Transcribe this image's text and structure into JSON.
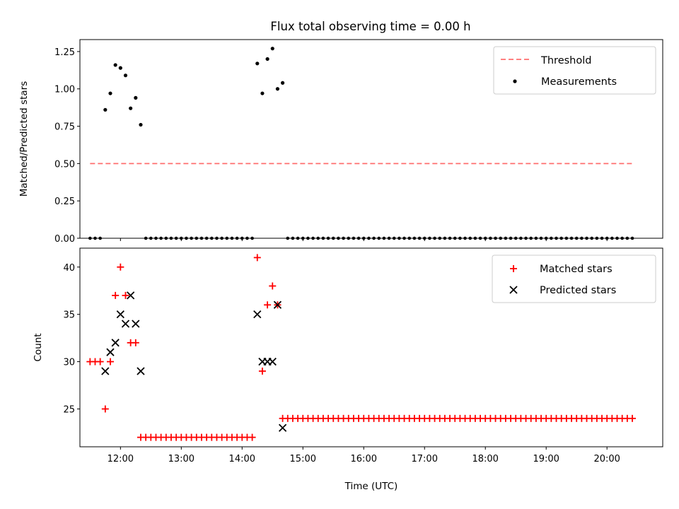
{
  "figure_title": "Flux total observing time = 0.00 h",
  "colors": {
    "threshold": "#ff6f6f",
    "measurements": "#000000",
    "matched": "#ff0000",
    "predicted": "#000000"
  },
  "chart_data": [
    {
      "type": "scatter",
      "title": "Flux total observing time = 0.00 h",
      "xlabel": "",
      "ylabel": "Matched/Predicted stars",
      "xlim": [
        "11:20",
        "20:55"
      ],
      "ylim": [
        0,
        1.33
      ],
      "yticks": [
        "0.00",
        "0.25",
        "0.50",
        "0.75",
        "1.00",
        "1.25"
      ],
      "legend_position": "top-right",
      "legend": [
        "Threshold",
        "Measurements"
      ],
      "threshold": {
        "y": 0.5,
        "x_start": "11:30",
        "x_end": "20:25"
      },
      "measurements": {
        "nonzero": [
          [
            "11:45",
            0.86
          ],
          [
            "11:50",
            0.97
          ],
          [
            "11:55",
            1.16
          ],
          [
            "12:00",
            1.14
          ],
          [
            "12:05",
            1.09
          ],
          [
            "12:10",
            0.87
          ],
          [
            "12:15",
            0.94
          ],
          [
            "12:20",
            0.76
          ],
          [
            "14:15",
            1.17
          ],
          [
            "14:20",
            0.97
          ],
          [
            "14:25",
            1.2
          ],
          [
            "14:30",
            1.27
          ],
          [
            "14:35",
            1.0
          ],
          [
            "14:40",
            1.04
          ]
        ],
        "zero_ranges": [
          [
            "11:30",
            "11:40"
          ],
          [
            "12:25",
            "14:10"
          ],
          [
            "14:45",
            "20:25"
          ]
        ]
      }
    },
    {
      "type": "scatter",
      "title": "",
      "xlabel": "Time (UTC)",
      "ylabel": "Count",
      "xlim": [
        "11:20",
        "20:55"
      ],
      "ylim": [
        21,
        42
      ],
      "yticks": [
        "25",
        "30",
        "35",
        "40"
      ],
      "xticks": [
        "12:00",
        "13:00",
        "14:00",
        "15:00",
        "16:00",
        "17:00",
        "18:00",
        "19:00",
        "20:00"
      ],
      "legend_position": "top-right",
      "legend": [
        "Matched stars",
        "Predicted stars"
      ],
      "matched": {
        "points": [
          [
            "11:30",
            30
          ],
          [
            "11:35",
            30
          ],
          [
            "11:40",
            30
          ],
          [
            "11:45",
            25
          ],
          [
            "11:50",
            30
          ],
          [
            "11:55",
            37
          ],
          [
            "12:00",
            40
          ],
          [
            "12:05",
            37
          ],
          [
            "12:10",
            32
          ],
          [
            "12:15",
            32
          ],
          [
            "14:15",
            41
          ],
          [
            "14:20",
            29
          ],
          [
            "14:25",
            36
          ],
          [
            "14:30",
            38
          ],
          [
            "14:35",
            36
          ]
        ],
        "constant_ranges": [
          {
            "from": "12:20",
            "to": "14:10",
            "y": 22
          },
          {
            "from": "14:40",
            "to": "20:25",
            "y": 24
          }
        ]
      },
      "predicted": {
        "points": [
          [
            "11:45",
            29
          ],
          [
            "11:50",
            31
          ],
          [
            "11:55",
            32
          ],
          [
            "12:00",
            35
          ],
          [
            "12:05",
            34
          ],
          [
            "12:10",
            37
          ],
          [
            "12:15",
            34
          ],
          [
            "12:20",
            29
          ],
          [
            "14:15",
            35
          ],
          [
            "14:20",
            30
          ],
          [
            "14:25",
            30
          ],
          [
            "14:30",
            30
          ],
          [
            "14:35",
            36
          ],
          [
            "14:40",
            23
          ]
        ]
      }
    }
  ]
}
